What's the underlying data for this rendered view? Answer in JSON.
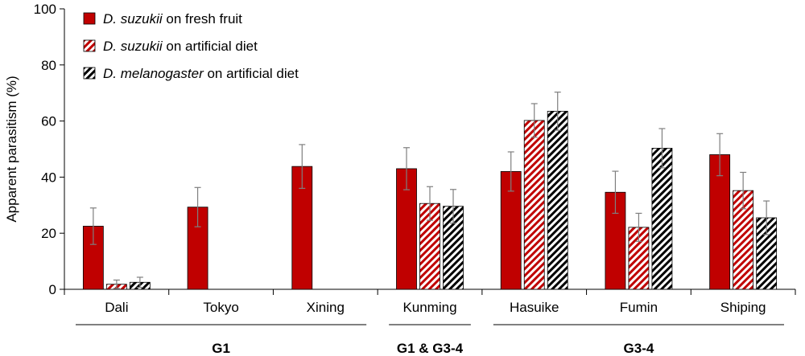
{
  "chart_data": {
    "type": "bar",
    "ylabel": "Apparent parasitism (%)",
    "ylim": [
      0,
      100
    ],
    "yticks": [
      0,
      20,
      40,
      60,
      80,
      100
    ],
    "grid": false,
    "legend_position": "top-left",
    "categories": [
      "Dali",
      "Tokyo",
      "Xining",
      "Kunming",
      "Hasuike",
      "Fumin",
      "Shiping"
    ],
    "series": [
      {
        "name_italic": "D. suzukii",
        "name_rest": " on fresh fruit",
        "style": "solid",
        "values": [
          22.5,
          29.3,
          43.8,
          43.0,
          42.0,
          34.6,
          48.0
        ],
        "errors": [
          6.5,
          7.0,
          7.8,
          7.5,
          7.0,
          7.5,
          7.5
        ]
      },
      {
        "name_italic": "D. suzukii",
        "name_rest": " on artificial diet",
        "style": "red-hatch",
        "values": [
          1.8,
          null,
          null,
          30.6,
          60.2,
          22.1,
          35.2
        ],
        "errors": [
          1.5,
          null,
          null,
          6.0,
          6.0,
          5.0,
          6.5
        ]
      },
      {
        "name_italic": "D. melanogaster",
        "name_rest": " on artificial diet",
        "style": "black-hatch",
        "values": [
          2.5,
          null,
          null,
          29.6,
          63.5,
          50.3,
          25.5
        ],
        "errors": [
          1.8,
          null,
          null,
          6.0,
          6.8,
          7.0,
          6.0
        ]
      }
    ],
    "groups": [
      {
        "label": "G1",
        "from": 0,
        "to": 2
      },
      {
        "label": "G1 & G3-4",
        "from": 3,
        "to": 3
      },
      {
        "label": "G3-4",
        "from": 4,
        "to": 6
      }
    ],
    "colors": {
      "red": "#c00000",
      "black": "#000000",
      "error": "#7f7f7f"
    }
  }
}
